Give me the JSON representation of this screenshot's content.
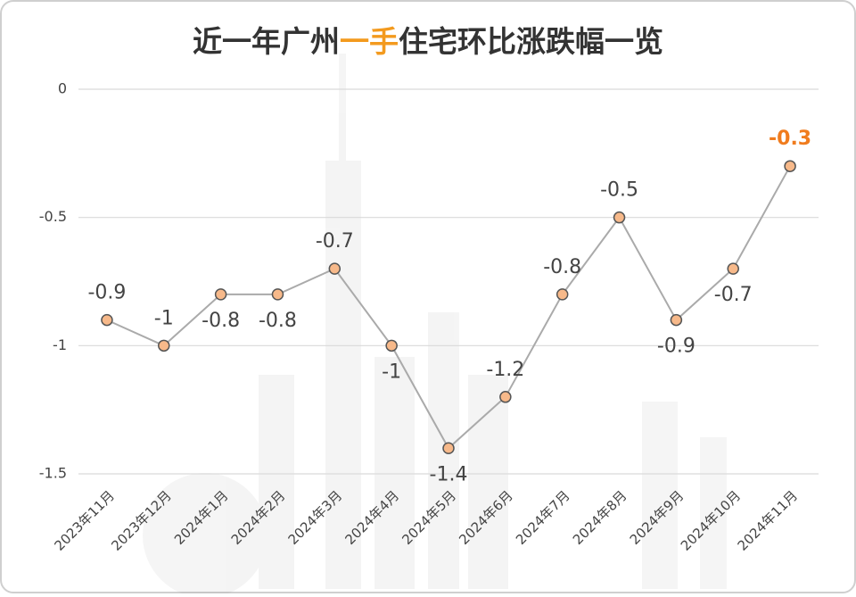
{
  "chart_data": {
    "type": "line",
    "title_segments": [
      {
        "text": "近一年广州",
        "color": "#333333"
      },
      {
        "text": "一手",
        "color": "#f39a1e"
      },
      {
        "text": "住宅环比涨跌幅一览",
        "color": "#333333"
      }
    ],
    "categories": [
      "2023年11月",
      "2023年12月",
      "2024年1月",
      "2024年2月",
      "2024年3月",
      "2024年4月",
      "2024年5月",
      "2024年6月",
      "2024年7月",
      "2024年8月",
      "2024年9月",
      "2024年10月",
      "2024年11月"
    ],
    "values": [
      -0.9,
      -1,
      -0.8,
      -0.8,
      -0.7,
      -1,
      -1.4,
      -1.2,
      -0.8,
      -0.5,
      -0.9,
      -0.7,
      -0.3
    ],
    "color": "#aaaaaa",
    "marker_color": "#f7b98a",
    "highlight_color": "#f07c1e",
    "ylim": [
      -1.5,
      0
    ],
    "yticks": [
      0,
      -0.5,
      -1,
      -1.5
    ],
    "grid": true
  }
}
